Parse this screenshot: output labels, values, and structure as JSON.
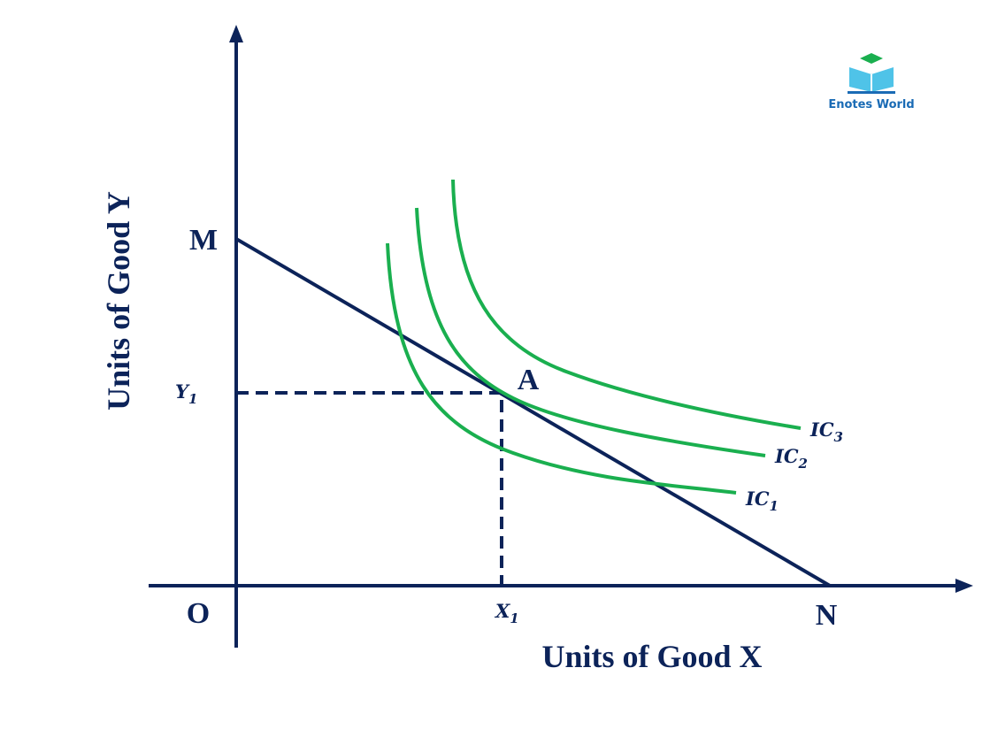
{
  "axes": {
    "y_label": "Units of Good Y",
    "x_label": "Units of Good X"
  },
  "points": {
    "origin": "O",
    "m": "M",
    "n": "N",
    "a": "A"
  },
  "levels": {
    "y1": {
      "main": "Y",
      "sub": "1"
    },
    "x1": {
      "main": "X",
      "sub": "1"
    }
  },
  "curves": [
    {
      "main": "IC",
      "sub": "1"
    },
    {
      "main": "IC",
      "sub": "2"
    },
    {
      "main": "IC",
      "sub": "3"
    }
  ],
  "logo": {
    "text": "Enotes World"
  }
}
